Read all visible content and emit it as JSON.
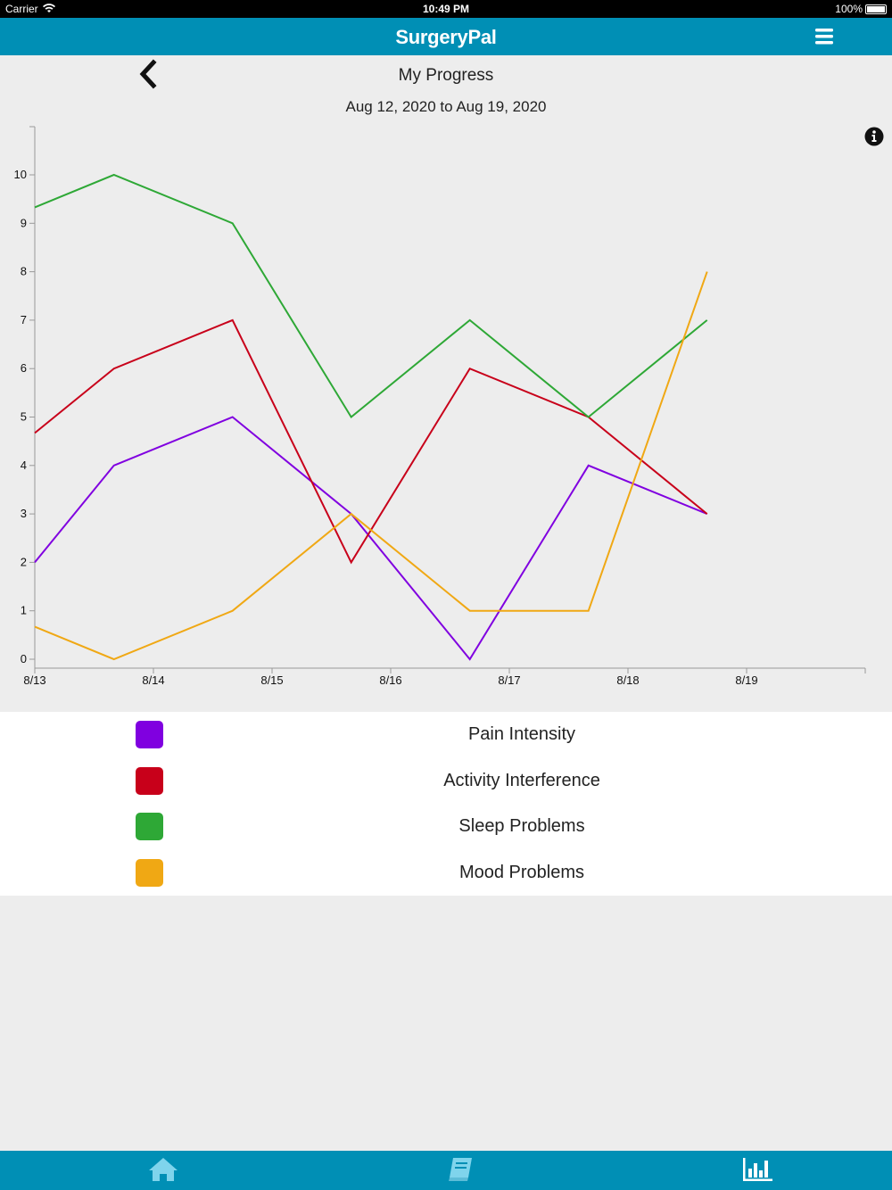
{
  "status_bar": {
    "carrier": "Carrier",
    "time": "10:49 PM",
    "battery": "100%"
  },
  "nav": {
    "title": "SurgeryPal",
    "menu_icon": "hamburger-menu-icon"
  },
  "header": {
    "back_icon": "chevron-left-icon",
    "title": "My Progress",
    "date_range": "Aug 12, 2020 to Aug 19, 2020",
    "info_icon": "info-circle-icon"
  },
  "chart_data": {
    "type": "line",
    "x_ticks": [
      "8/13",
      "8/14",
      "8/15",
      "8/16",
      "8/17",
      "8/18",
      "8/19"
    ],
    "y_ticks": [
      "0",
      "1",
      "2",
      "3",
      "4",
      "5",
      "6",
      "7",
      "8",
      "9",
      "10"
    ],
    "ylim": [
      0,
      11
    ],
    "xlim": [
      0,
      7
    ],
    "grid": false,
    "x": [
      0,
      0.667,
      1.667,
      2.667,
      3.667,
      4.667,
      5.667
    ],
    "series": [
      {
        "name": "Pain Intensity",
        "color": "#8000e0",
        "values": [
          2,
          4,
          5,
          3,
          0,
          4,
          3
        ]
      },
      {
        "name": "Activity Interference",
        "color": "#c8001a",
        "values": [
          4.67,
          6,
          7,
          2,
          6,
          5,
          3
        ]
      },
      {
        "name": "Sleep Problems",
        "color": "#2ea836",
        "values": [
          9.33,
          10,
          9,
          5,
          7,
          5,
          7
        ]
      },
      {
        "name": "Mood Problems",
        "color": "#f0a814",
        "values": [
          0.67,
          0,
          1,
          3,
          1,
          1,
          8
        ]
      }
    ]
  },
  "legend": {
    "items": [
      {
        "label": "Pain Intensity",
        "color": "#8000e0"
      },
      {
        "label": "Activity Interference",
        "color": "#c8001a"
      },
      {
        "label": "Sleep Problems",
        "color": "#2ea836"
      },
      {
        "label": "Mood Problems",
        "color": "#f0a814"
      }
    ]
  },
  "tab_bar": {
    "tabs": [
      {
        "icon": "home-icon",
        "active": false
      },
      {
        "icon": "book-icon",
        "active": false
      },
      {
        "icon": "bar-chart-icon",
        "active": true
      }
    ]
  }
}
